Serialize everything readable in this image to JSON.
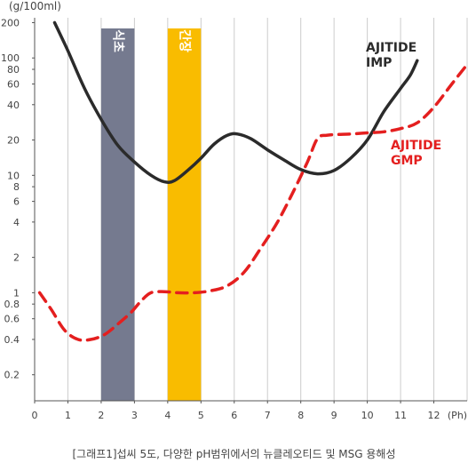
{
  "chart_data": {
    "type": "line",
    "ylabel": "(g/100ml)",
    "x_unit": "(Ph)",
    "caption": "[그래프1]섭씨 5도, 다양한 pH범위에서의 뉴클레오티드 및 MSG 용해성",
    "x_ticks": [
      "0",
      "1",
      "2",
      "3",
      "4",
      "5",
      "6",
      "7",
      "8",
      "9",
      "10",
      "11",
      "12"
    ],
    "y_ticks": [
      {
        "v": 200,
        "label": "200"
      },
      {
        "v": 100,
        "label": "100"
      },
      {
        "v": 80,
        "label": "80"
      },
      {
        "v": 60,
        "label": "60"
      },
      {
        "v": 40,
        "label": "40"
      },
      {
        "v": 20,
        "label": "20"
      },
      {
        "v": 10,
        "label": "10"
      },
      {
        "v": 8,
        "label": "8"
      },
      {
        "v": 6,
        "label": "6"
      },
      {
        "v": 4,
        "label": "4"
      },
      {
        "v": 2,
        "label": "2"
      },
      {
        "v": 1,
        "label": "1"
      },
      {
        "v": 0.8,
        "label": "0.8"
      },
      {
        "v": 0.6,
        "label": "0.6"
      },
      {
        "v": 0.4,
        "label": "0.4"
      },
      {
        "v": 0.2,
        "label": "0.2"
      }
    ],
    "xlim": [
      0,
      13
    ],
    "ylim": [
      0.12,
      220
    ],
    "y_scale": "log",
    "grid": "vertical",
    "bands": [
      {
        "label": "식초",
        "x_start": 2,
        "x_end": 3,
        "color": "#757a8f"
      },
      {
        "label": "간장",
        "x_start": 4,
        "x_end": 5,
        "color": "#f9bc00"
      }
    ],
    "series": [
      {
        "name_lines": [
          "AJITIDE",
          "IMP"
        ],
        "color": "#2b2b2b",
        "style": "solid",
        "points": [
          [
            0.6,
            200
          ],
          [
            1.0,
            115
          ],
          [
            1.5,
            55
          ],
          [
            2.0,
            30
          ],
          [
            2.5,
            18
          ],
          [
            3.0,
            13
          ],
          [
            3.5,
            10
          ],
          [
            3.9,
            8.8
          ],
          [
            4.2,
            9.0
          ],
          [
            4.6,
            11
          ],
          [
            5.0,
            14
          ],
          [
            5.4,
            18.5
          ],
          [
            5.8,
            22
          ],
          [
            6.1,
            22.5
          ],
          [
            6.5,
            20.5
          ],
          [
            7.0,
            16.5
          ],
          [
            7.5,
            13.5
          ],
          [
            8.0,
            11.2
          ],
          [
            8.5,
            10.3
          ],
          [
            9.0,
            11
          ],
          [
            9.5,
            14
          ],
          [
            10.0,
            20
          ],
          [
            10.5,
            35
          ],
          [
            11.0,
            55
          ],
          [
            11.3,
            72
          ],
          [
            11.5,
            95
          ]
        ]
      },
      {
        "name_lines": [
          "AJITIDE",
          "GMP"
        ],
        "color": "#e41f1f",
        "style": "dashed",
        "points": [
          [
            0.15,
            1.0
          ],
          [
            0.5,
            0.72
          ],
          [
            0.9,
            0.48
          ],
          [
            1.3,
            0.4
          ],
          [
            1.7,
            0.4
          ],
          [
            2.1,
            0.44
          ],
          [
            2.5,
            0.54
          ],
          [
            2.9,
            0.68
          ],
          [
            3.2,
            0.85
          ],
          [
            3.5,
            1.0
          ],
          [
            3.9,
            1.02
          ],
          [
            4.3,
            1.0
          ],
          [
            4.8,
            1.0
          ],
          [
            5.3,
            1.04
          ],
          [
            5.8,
            1.15
          ],
          [
            6.3,
            1.5
          ],
          [
            6.8,
            2.4
          ],
          [
            7.3,
            4.0
          ],
          [
            7.8,
            7.5
          ],
          [
            8.2,
            13
          ],
          [
            8.5,
            20.5
          ],
          [
            8.8,
            22
          ],
          [
            9.5,
            22.5
          ],
          [
            10.0,
            23
          ],
          [
            10.5,
            23.5
          ],
          [
            11.0,
            25
          ],
          [
            11.5,
            28
          ],
          [
            12.0,
            38
          ],
          [
            12.5,
            58
          ],
          [
            13.0,
            88
          ]
        ]
      }
    ]
  }
}
